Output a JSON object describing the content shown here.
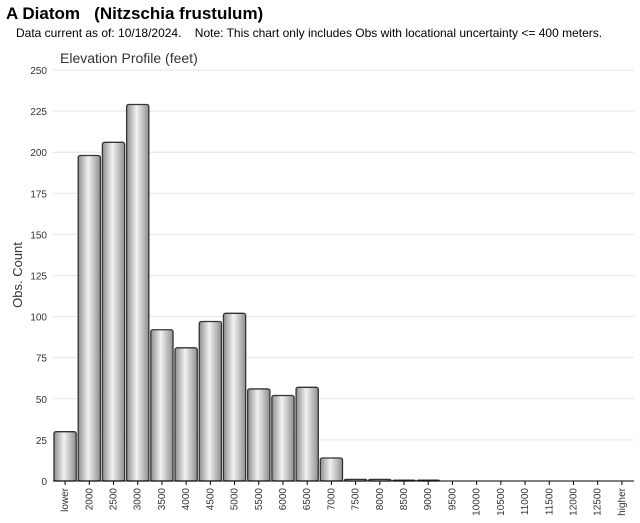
{
  "header": {
    "title": "A Diatom   (Nitzschia frustulum)",
    "note": "Data current as of: 10/18/2024.    Note: This chart only includes Obs with locational uncertainty <= 400 meters."
  },
  "colors": {
    "bar_light": "#f2f2f2",
    "bar_dark": "#8f8f8f",
    "bar_stroke": "#333333",
    "grid": "#e6e6e6",
    "axis": "#000000",
    "text": "#333333"
  },
  "chart_data": {
    "type": "bar",
    "title": "Elevation Profile (feet)",
    "xlabel": "",
    "ylabel": "Obs. Count",
    "ylim": [
      0,
      250
    ],
    "yticks": [
      0,
      25,
      50,
      75,
      100,
      125,
      150,
      175,
      200,
      225,
      250
    ],
    "grid": true,
    "categories": [
      "lower",
      "2000",
      "2500",
      "3000",
      "3500",
      "4000",
      "4500",
      "5000",
      "5500",
      "6000",
      "6500",
      "7000",
      "7500",
      "8000",
      "8500",
      "9000",
      "9500",
      "10000",
      "10500",
      "11000",
      "11500",
      "12000",
      "12500",
      "higher"
    ],
    "values": [
      30,
      198,
      206,
      229,
      92,
      81,
      97,
      102,
      56,
      52,
      57,
      14,
      1,
      1,
      0.5,
      0.5,
      0,
      0,
      0,
      0,
      0,
      0,
      0,
      0
    ]
  }
}
